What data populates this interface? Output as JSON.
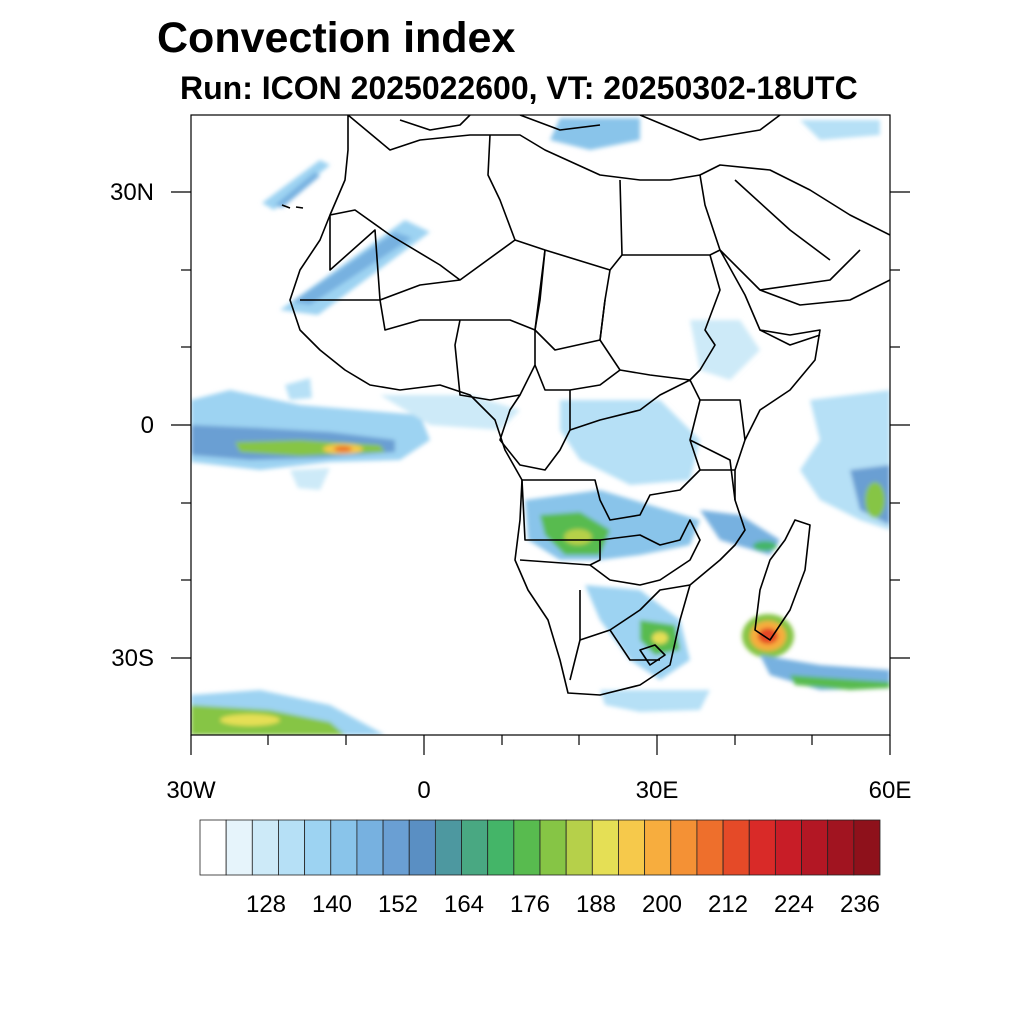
{
  "title": "Convection index",
  "subtitle": "Run: ICON 2025022600,  VT: 20250302-18UTC",
  "map": {
    "region": "Africa",
    "lon_range": [
      -30,
      60
    ],
    "lat_range": [
      -40,
      40
    ],
    "x_tick_labels": [
      "30W",
      "0",
      "30E",
      "60E"
    ],
    "y_tick_labels": [
      "30N",
      "0",
      "30S"
    ]
  },
  "colorbar": {
    "labels": [
      "128",
      "140",
      "152",
      "164",
      "176",
      "188",
      "200",
      "212",
      "224",
      "236"
    ],
    "colors": [
      "#ffffff",
      "#e6f4fb",
      "#cdeaf8",
      "#b6e0f6",
      "#9dd3f2",
      "#89c4ea",
      "#77b1e0",
      "#6a9fd3",
      "#5a8fc3",
      "#4d98a0",
      "#49a882",
      "#44b568",
      "#58bb4f",
      "#86c545",
      "#b6d04a",
      "#e5df55",
      "#f6c94b",
      "#f7ad3e",
      "#f49135",
      "#ee6f2c",
      "#e54a28",
      "#d92a28",
      "#c81d27",
      "#b31724",
      "#a11420",
      "#8e111b"
    ]
  }
}
